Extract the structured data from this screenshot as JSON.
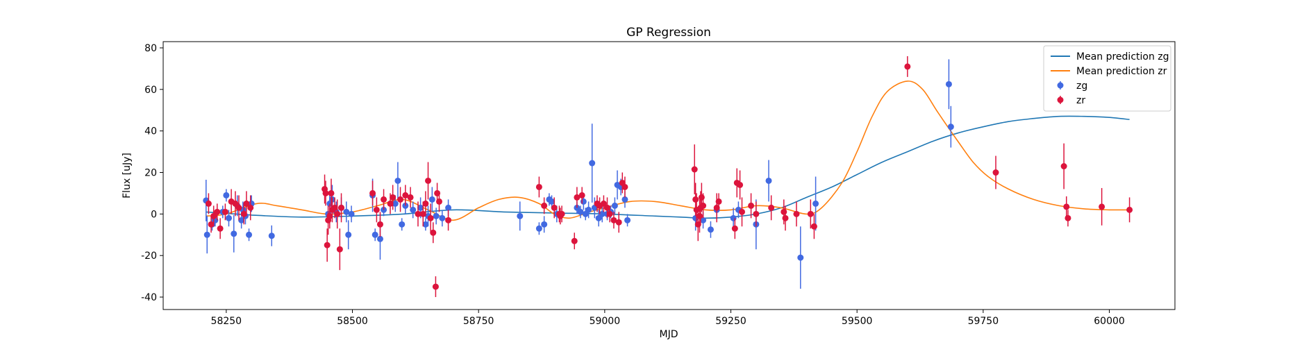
{
  "chart_data": {
    "type": "scatter",
    "title": "GP Regression",
    "xlabel": "MJD",
    "ylabel": "Flux [uJy]",
    "xlim": [
      58125,
      60130
    ],
    "ylim": [
      -46,
      83
    ],
    "xticks": [
      58250,
      58500,
      58750,
      59000,
      59250,
      59500,
      59750,
      60000
    ],
    "yticks": [
      -40,
      -20,
      0,
      20,
      40,
      60,
      80
    ],
    "grid": false,
    "legend_position": "top-right",
    "colors": {
      "zg_line": "#1f77b4",
      "zr_line": "#ff7f0e",
      "zg_points": "#4169e1",
      "zr_points": "#dc143c"
    },
    "lines": [
      {
        "name": "Mean prediction zg",
        "color": "#1f77b4",
        "x": [
          58210,
          58300,
          58400,
          58500,
          58600,
          58700,
          58800,
          58900,
          59000,
          59100,
          59150,
          59200,
          59250,
          59300,
          59350,
          59400,
          59450,
          59500,
          59550,
          59600,
          59650,
          59700,
          59750,
          59800,
          59850,
          59900,
          59950,
          60000,
          60040
        ],
        "y": [
          1,
          -0.5,
          -1.5,
          -1,
          0,
          2,
          1,
          0.5,
          0,
          -1,
          -1.5,
          -2,
          -1.5,
          0,
          3,
          8,
          13,
          19,
          25,
          30,
          35,
          39,
          42,
          44.5,
          46,
          47,
          47,
          46.5,
          45.5
        ]
      },
      {
        "name": "Mean prediction zr",
        "color": "#ff7f0e",
        "x": [
          58210,
          58250,
          58310,
          58350,
          58400,
          58450,
          58500,
          58550,
          58600,
          58650,
          58700,
          58750,
          58790,
          58830,
          58870,
          58900,
          58930,
          58970,
          59000,
          59050,
          59100,
          59150,
          59200,
          59250,
          59300,
          59350,
          59400,
          59430,
          59470,
          59500,
          59530,
          59560,
          59600,
          59630,
          59660,
          59700,
          59730,
          59760,
          59800,
          59850,
          59900,
          59950,
          60000,
          60040
        ],
        "y": [
          -1,
          0,
          5,
          4,
          2,
          0,
          1,
          4,
          7,
          2,
          -3,
          3,
          7,
          8,
          5,
          0,
          -2,
          1,
          3,
          6,
          6,
          4,
          2,
          2,
          4,
          3,
          0,
          3,
          15,
          30,
          47,
          59,
          64,
          60,
          49,
          35,
          25,
          18,
          12,
          7,
          4,
          2.5,
          2,
          2
        ]
      }
    ],
    "series": [
      {
        "name": "zg",
        "color": "#4169e1",
        "x": [
          58210,
          58212,
          58222,
          58228,
          58243,
          58250,
          58255,
          58265,
          58272,
          58280,
          58283,
          58288,
          58295,
          58300,
          58340,
          58452,
          58455,
          58460,
          58468,
          58478,
          58488,
          58492,
          58498,
          58540,
          58545,
          58555,
          58562,
          58585,
          58590,
          58598,
          58605,
          58620,
          58635,
          58645,
          58650,
          58658,
          58666,
          58678,
          58690,
          58832,
          58870,
          58880,
          58890,
          58895,
          58905,
          58945,
          58952,
          58958,
          58962,
          58968,
          58975,
          58980,
          58988,
          58995,
          59005,
          59012,
          59020,
          59025,
          59032,
          59040,
          59045,
          59180,
          59195,
          59210,
          59222,
          59255,
          59265,
          59300,
          59325,
          59388,
          59418,
          59682,
          59686
        ],
        "y": [
          6.5,
          -10,
          -5,
          -3,
          1,
          9,
          -2,
          -9.5,
          4,
          -3,
          2,
          -1,
          -10,
          5,
          -10.5,
          0,
          5,
          7,
          1,
          3,
          1,
          -10,
          0,
          9,
          -10,
          -12,
          2,
          5,
          16,
          -5,
          4,
          2,
          3,
          -5,
          -1,
          7,
          -1,
          -2,
          3,
          -1,
          -7,
          -5,
          7,
          6,
          0,
          3,
          1,
          6,
          0,
          2,
          24.5,
          3,
          -2,
          0,
          0,
          1,
          4,
          14,
          13,
          7,
          -3,
          -2,
          -3,
          -7.5,
          2,
          -2,
          2,
          -5,
          16,
          -21,
          5,
          62.5,
          42
        ],
        "err": [
          10,
          9,
          3,
          3,
          3,
          3,
          4,
          9,
          5,
          4,
          4,
          4,
          3,
          4,
          5,
          4,
          5,
          7,
          5,
          5,
          5,
          7,
          4,
          8,
          3,
          10,
          3,
          4,
          9,
          3,
          4,
          4,
          5,
          3,
          5,
          6,
          4,
          4,
          4,
          7,
          3,
          4,
          3,
          3,
          4,
          3,
          3,
          4,
          3,
          4,
          19,
          5,
          4,
          4,
          3,
          3,
          4,
          7,
          4,
          4,
          3,
          6,
          4,
          4,
          3,
          5,
          4,
          12,
          10,
          15,
          13,
          12,
          10
        ]
      },
      {
        "name": "zr",
        "color": "#dc143c",
        "x": [
          58215,
          58220,
          58225,
          58232,
          58238,
          58248,
          58260,
          58268,
          58275,
          58285,
          58290,
          58298,
          58445,
          58447,
          58450,
          58452,
          58455,
          58458,
          58460,
          58465,
          58470,
          58475,
          58478,
          58540,
          58548,
          58555,
          58562,
          58575,
          58580,
          58595,
          58605,
          58615,
          58630,
          58640,
          58645,
          58650,
          58655,
          58660,
          58665,
          58668,
          58672,
          58690,
          58870,
          58880,
          58900,
          58910,
          58912,
          58915,
          58940,
          58945,
          58955,
          58985,
          58990,
          58998,
          59005,
          59010,
          59018,
          59028,
          59035,
          59040,
          59178,
          59180,
          59182,
          59185,
          59188,
          59190,
          59192,
          59195,
          59222,
          59226,
          59258,
          59262,
          59268,
          59272,
          59290,
          59300,
          59330,
          59355,
          59358,
          59380,
          59408,
          59415,
          59600,
          59775,
          59910,
          59915,
          59918,
          59985,
          60040
        ],
        "y": [
          5,
          -5,
          -1,
          1,
          -7,
          1,
          6,
          5,
          3,
          0,
          5,
          3,
          12,
          10,
          -15,
          -3,
          -1,
          10,
          2,
          3,
          0,
          -17,
          3,
          10,
          2,
          -5,
          7,
          5,
          8,
          7,
          9,
          8,
          0,
          0,
          5,
          16,
          -2,
          -9,
          -35,
          10,
          6,
          -3,
          13,
          4,
          3,
          0,
          -1,
          0,
          -13,
          8,
          9,
          5,
          4,
          5,
          3,
          0,
          -3,
          -4,
          15,
          13,
          21.5,
          7,
          2,
          -5,
          -1,
          3,
          8,
          4,
          3,
          6,
          -7,
          15,
          14,
          1,
          4,
          0,
          3,
          1,
          -2,
          0,
          0,
          -6,
          71,
          20,
          23,
          3.5,
          -2,
          3.5,
          2
        ],
        "err": [
          5,
          4,
          5,
          4,
          5,
          4,
          6,
          6,
          6,
          5,
          6,
          6,
          7,
          6,
          8,
          7,
          6,
          7,
          6,
          5,
          7,
          10,
          7,
          6,
          6,
          6,
          5,
          5,
          6,
          6,
          5,
          5,
          6,
          6,
          6,
          9,
          7,
          5,
          5,
          5,
          5,
          5,
          5,
          4,
          5,
          4,
          4,
          4,
          4,
          5,
          4,
          4,
          4,
          4,
          5,
          4,
          4,
          5,
          5,
          5,
          12,
          8,
          8,
          8,
          8,
          8,
          7,
          6,
          7,
          4,
          5,
          7,
          7,
          7,
          6,
          6,
          6,
          6,
          6,
          6,
          7,
          6,
          5,
          8,
          11,
          5,
          4,
          9,
          6
        ]
      }
    ]
  }
}
